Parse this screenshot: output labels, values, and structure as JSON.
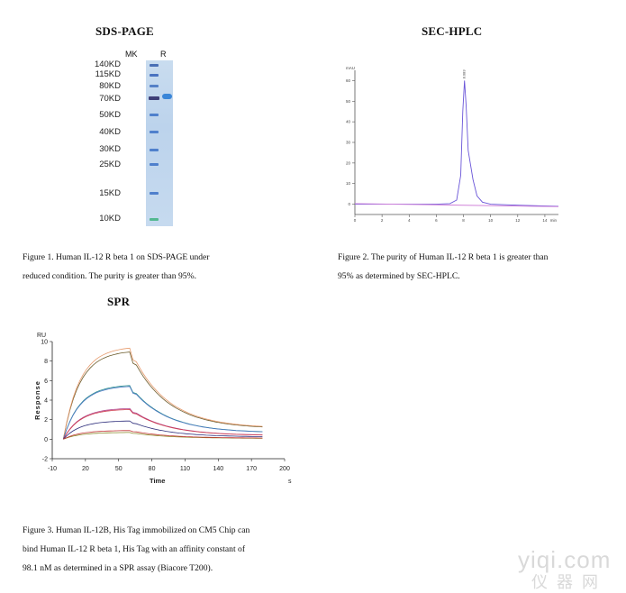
{
  "panels": {
    "sds": {
      "title": "SDS-PAGE",
      "lane_labels": [
        "MK",
        "R"
      ],
      "ladder": [
        "140KD",
        "115KD",
        "80KD",
        "70KD",
        "50KD",
        "40KD",
        "30KD",
        "25KD",
        "15KD",
        "10KD"
      ],
      "caption": [
        "Figure 1. Human IL-12 R beta 1 on SDS-PAGE under",
        "reduced condition. The purity is greater than 95%."
      ]
    },
    "sec": {
      "title": "SEC-HPLC",
      "caption": [
        "Figure 2. The purity of Human IL-12 R beta 1 is greater than",
        "95% as determined by SEC-HPLC."
      ]
    },
    "spr": {
      "title": "SPR",
      "caption": [
        "Figure 3. Human IL-12B, His Tag immobilized on CM5 Chip can",
        "bind Human IL-12 R beta 1, His Tag with an affinity constant of",
        "98.1 nM as determined in a SPR assay (Biacore T200)."
      ]
    }
  },
  "watermark": {
    "line1": "yiqi.com",
    "line2": "仪器网"
  },
  "chart_data": [
    {
      "type": "line",
      "title": "SEC-HPLC",
      "xlabel": "",
      "ylabel": "",
      "y_unit": "mAU",
      "x_unit": "min",
      "xlim": [
        0,
        15
      ],
      "ylim": [
        -5,
        65
      ],
      "xticks": [
        "0",
        "2",
        "4",
        "6",
        "8",
        "10",
        "12",
        "14"
      ],
      "yticks": [
        "0",
        "10",
        "20",
        "30",
        "40",
        "50",
        "60"
      ],
      "peak_label": "8.083",
      "series": [
        {
          "color": "#6a55d8",
          "x": [
            0,
            6,
            7,
            7.5,
            7.8,
            7.95,
            8.08,
            8.2,
            8.35,
            8.5,
            8.7,
            9.0,
            9.4,
            10,
            12,
            15
          ],
          "y": [
            0,
            0,
            0.3,
            2,
            14,
            45,
            60,
            48,
            26,
            20,
            12,
            4,
            1,
            0,
            -0.5,
            -1
          ]
        },
        {
          "color": "#d080d8",
          "x": [
            0,
            15
          ],
          "y": [
            0.3,
            -1.2
          ]
        }
      ]
    },
    {
      "type": "line",
      "title": "SPR",
      "xlabel": "Time",
      "ylabel": "Response",
      "y_unit": "RU",
      "x_unit": "s",
      "xlim": [
        -10,
        200
      ],
      "ylim": [
        -2,
        10
      ],
      "xticks": [
        "-10",
        "20",
        "50",
        "80",
        "110",
        "140",
        "170",
        "200"
      ],
      "yticks": [
        "-2",
        "0",
        "2",
        "4",
        "6",
        "8",
        "10"
      ],
      "series": [
        {
          "color": "#6b5b2a",
          "max": 9.1
        },
        {
          "color": "#e79a6c",
          "max": 9.5
        },
        {
          "color": "#2a8f8f",
          "max": 5.6
        },
        {
          "color": "#4e78c4",
          "max": 5.5
        },
        {
          "color": "#b0408a",
          "max": 3.2
        },
        {
          "color": "#d04050",
          "max": 3.1
        },
        {
          "color": "#2c2c7a",
          "max": 1.9
        },
        {
          "color": "#8a8a2a",
          "max": 0.7
        },
        {
          "color": "#c23535",
          "max": 0.9
        }
      ]
    }
  ]
}
